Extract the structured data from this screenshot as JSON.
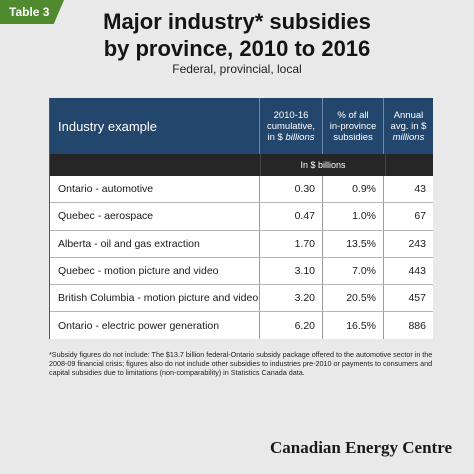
{
  "tag": "Table 3",
  "title_line1": "Major industry* subsidies",
  "title_line2": "by province, 2010 to 2016",
  "subtitle": "Federal, provincial, local",
  "columns": {
    "c0": "Industry example",
    "c1": "2010-16 cumulative, in $ billions",
    "c2": "% of all in-province subsidies",
    "c3": "Annual avg. in $ millions"
  },
  "units_label": "In $ billions",
  "rows": [
    {
      "name": "Ontario - automotive",
      "cumulative": "0.30",
      "pct": "0.9%",
      "avg": "43"
    },
    {
      "name": "Quebec - aerospace",
      "cumulative": "0.47",
      "pct": "1.0%",
      "avg": "67"
    },
    {
      "name": "Alberta - oil and gas extraction",
      "cumulative": "1.70",
      "pct": "13.5%",
      "avg": "243"
    },
    {
      "name": "Quebec - motion picture and video",
      "cumulative": "3.10",
      "pct": "7.0%",
      "avg": "443"
    },
    {
      "name": "British Columbia - motion picture and video",
      "cumulative": "3.20",
      "pct": "20.5%",
      "avg": "457"
    },
    {
      "name": "Ontario - electric power generation",
      "cumulative": "6.20",
      "pct": "16.5%",
      "avg": "886"
    }
  ],
  "footnote": "*Subsidy figures do not include: The $13.7 billion federal-Ontario subsidy package offered to the automotive sector in the 2008-09 financial crisis; figures also do not include other subsidies to industries pre-2010 or payments to consumers and capital subsidies due to limitations (non-comparability) in Statistics Canada data.",
  "brand": "Canadian Energy Centre",
  "colors": {
    "tag": "#4f8a2e",
    "header": "#23466d",
    "units_bar": "#262626"
  }
}
